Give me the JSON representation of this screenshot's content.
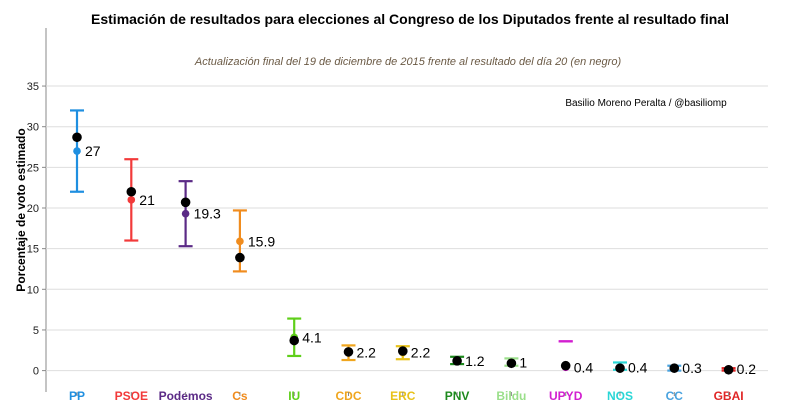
{
  "chart_data": {
    "type": "scatter",
    "title": "Estimación de resultados para elecciones al Congreso de los Diputados frente al resultado final",
    "subtitle": "Actualización final del 19 de diciembre de 2015 frente al resultado del día 20 (en negro)",
    "credit": "Basilio Moreno Peralta / @basiliomp",
    "xlabel": "",
    "ylabel": "Porcentaje de voto estimado",
    "ylim": [
      -2,
      40
    ],
    "yticks": [
      0,
      5,
      10,
      15,
      20,
      25,
      30,
      35
    ],
    "grid": true,
    "series": [
      {
        "name": "Estimación",
        "key": "estimate"
      },
      {
        "name": "Resultado final",
        "key": "result",
        "color": "#000000"
      }
    ],
    "parties": [
      {
        "name": "PP",
        "color": "#1f8fe0",
        "estimate": 27,
        "estimate_label": "27",
        "low": 22,
        "high": 32,
        "result": 28.7
      },
      {
        "name": "PSOE",
        "color": "#f23a3a",
        "estimate": 21,
        "estimate_label": "21",
        "low": 16,
        "high": 26,
        "result": 22.0
      },
      {
        "name": "Podemos",
        "color": "#5b2a86",
        "estimate": 19.3,
        "estimate_label": "19.3",
        "low": 15.3,
        "high": 23.3,
        "result": 20.7
      },
      {
        "name": "Cs",
        "color": "#f08c1e",
        "estimate": 15.9,
        "estimate_label": "15.9",
        "low": 12.2,
        "high": 19.7,
        "result": 13.9
      },
      {
        "name": "IU",
        "color": "#5fcf1a",
        "estimate": 4.1,
        "estimate_label": "4.1",
        "low": 1.8,
        "high": 6.4,
        "result": 3.7
      },
      {
        "name": "CDC",
        "color": "#f0a61e",
        "estimate": 2.2,
        "estimate_label": "2.2",
        "low": 1.3,
        "high": 3.1,
        "result": 2.3
      },
      {
        "name": "ERC",
        "color": "#e8c21a",
        "estimate": 2.2,
        "estimate_label": "2.2",
        "low": 1.4,
        "high": 3.0,
        "result": 2.4
      },
      {
        "name": "PNV",
        "color": "#1d8a1d",
        "estimate": 1.2,
        "estimate_label": "1.2",
        "low": 0.8,
        "high": 1.7,
        "result": 1.2
      },
      {
        "name": "Bildu",
        "color": "#9adf8a",
        "estimate": 1,
        "estimate_label": "1",
        "low": 0.6,
        "high": 1.5,
        "result": 0.9
      },
      {
        "name": "UPYD",
        "color": "#d21fd0",
        "estimate": 0.4,
        "estimate_label": "0.4",
        "low": 3.6,
        "high": 3.6,
        "result": 0.6
      },
      {
        "name": "NOS",
        "color": "#2ad6d6",
        "estimate": 0.4,
        "estimate_label": "0.4",
        "low": 0.1,
        "high": 1.0,
        "result": 0.3
      },
      {
        "name": "CC",
        "color": "#4aa3df",
        "estimate": 0.3,
        "estimate_label": "0.3",
        "low": 0.0,
        "high": 0.6,
        "result": 0.3
      },
      {
        "name": "GBAI",
        "color": "#e02626",
        "estimate": 0.2,
        "estimate_label": "0.2",
        "low": 0.0,
        "high": 0.3,
        "result": 0.1
      }
    ]
  }
}
